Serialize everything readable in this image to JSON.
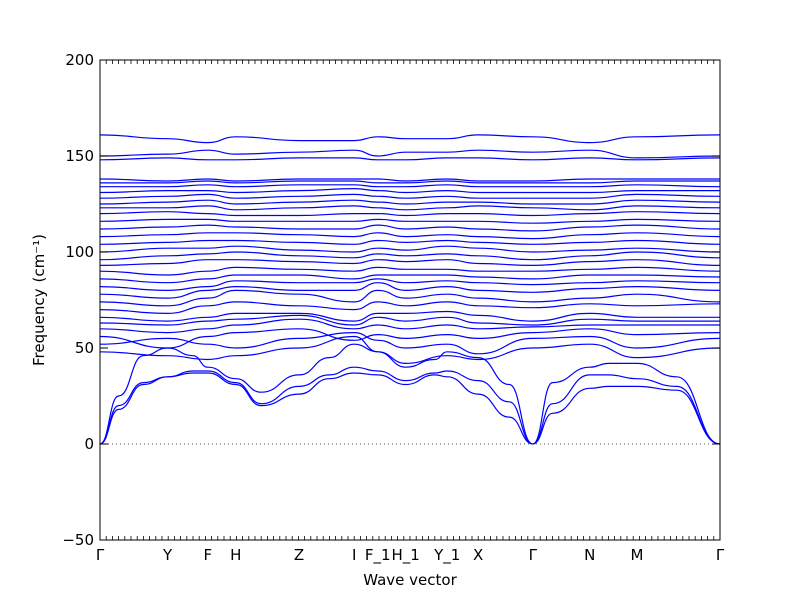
{
  "chart_data": {
    "type": "line",
    "title": "",
    "xlabel": "Wave vector",
    "ylabel": "Frequency",
    "ylabel_unit": "(cm⁻¹)",
    "ylim": [
      -50,
      200
    ],
    "yticks": [
      -50,
      0,
      50,
      100,
      150,
      200
    ],
    "x_tick_labels": [
      "Γ",
      "Y",
      "F",
      "H",
      "Z",
      "I",
      "F_1",
      "H_1",
      "Y_1",
      "X",
      "Γ",
      "N",
      "M",
      "Γ"
    ],
    "x_tick_positions": [
      0,
      0.109,
      0.174,
      0.219,
      0.321,
      0.41,
      0.448,
      0.493,
      0.56,
      0.61,
      0.698,
      0.79,
      0.866,
      1.0
    ],
    "zero_line": 0,
    "line_color": "#0000ff",
    "acoustic_branches": [
      {
        "x": [
          0,
          0.03,
          0.07,
          0.109,
          0.15,
          0.174,
          0.219,
          0.26,
          0.321,
          0.37,
          0.41,
          0.448,
          0.493,
          0.54,
          0.56,
          0.61,
          0.66,
          0.698,
          0.73,
          0.79,
          0.82,
          0.866,
          0.93,
          1.0
        ],
        "y": [
          0,
          18,
          31,
          35,
          37,
          37,
          31,
          20,
          26,
          34,
          37,
          36,
          31,
          36,
          35,
          26,
          14,
          0,
          16,
          29,
          30,
          30,
          28,
          0
        ]
      },
      {
        "x": [
          0,
          0.03,
          0.07,
          0.109,
          0.15,
          0.174,
          0.219,
          0.26,
          0.321,
          0.37,
          0.41,
          0.448,
          0.493,
          0.54,
          0.56,
          0.61,
          0.66,
          0.698,
          0.73,
          0.79,
          0.82,
          0.866,
          0.93,
          1.0
        ],
        "y": [
          0,
          20,
          32,
          35,
          38,
          38,
          32,
          21,
          30,
          36,
          40,
          38,
          33,
          37,
          38,
          33,
          22,
          0,
          21,
          36,
          36,
          34,
          30,
          0
        ]
      },
      {
        "x": [
          0,
          0.03,
          0.07,
          0.109,
          0.15,
          0.174,
          0.219,
          0.26,
          0.321,
          0.37,
          0.41,
          0.448,
          0.493,
          0.54,
          0.56,
          0.61,
          0.66,
          0.698,
          0.73,
          0.79,
          0.82,
          0.866,
          0.93,
          1.0
        ],
        "y": [
          0,
          25,
          46,
          50,
          46,
          40,
          34,
          27,
          36,
          45,
          52,
          48,
          40,
          44,
          48,
          45,
          31,
          0,
          32,
          40,
          42,
          42,
          35,
          0
        ]
      }
    ],
    "optical_branches": [
      {
        "x": [
          0,
          0.109,
          0.174,
          0.219,
          0.321,
          0.41,
          0.448,
          0.493,
          0.56,
          0.61,
          0.698,
          0.79,
          0.866,
          1.0
        ],
        "y": [
          48,
          46,
          44,
          46,
          50,
          56,
          48,
          42,
          46,
          44,
          50,
          52,
          45,
          50
        ]
      },
      {
        "x": [
          0,
          0.109,
          0.174,
          0.219,
          0.321,
          0.41,
          0.448,
          0.493,
          0.56,
          0.61,
          0.698,
          0.79,
          0.866,
          1.0
        ],
        "y": [
          52,
          55,
          52,
          50,
          55,
          58,
          54,
          50,
          52,
          47,
          55,
          56,
          50,
          55
        ]
      },
      {
        "x": [
          0,
          0.109,
          0.174,
          0.219,
          0.321,
          0.41,
          0.448,
          0.493,
          0.56,
          0.61,
          0.698,
          0.79,
          0.866,
          1.0
        ],
        "y": [
          56,
          50,
          56,
          58,
          60,
          54,
          57,
          55,
          57,
          55,
          58,
          60,
          57,
          58
        ]
      },
      {
        "x": [
          0,
          0.109,
          0.174,
          0.219,
          0.321,
          0.41,
          0.448,
          0.493,
          0.56,
          0.61,
          0.698,
          0.79,
          0.866,
          1.0
        ],
        "y": [
          60,
          58,
          60,
          62,
          65,
          60,
          62,
          60,
          62,
          60,
          61,
          62,
          62,
          62
        ]
      },
      {
        "x": [
          0,
          0.109,
          0.174,
          0.219,
          0.321,
          0.41,
          0.448,
          0.493,
          0.56,
          0.61,
          0.698,
          0.79,
          0.866,
          1.0
        ],
        "y": [
          63,
          62,
          64,
          65,
          67,
          62,
          66,
          64,
          66,
          63,
          62,
          65,
          64,
          64
        ]
      },
      {
        "x": [
          0,
          0.109,
          0.174,
          0.219,
          0.321,
          0.41,
          0.448,
          0.493,
          0.56,
          0.61,
          0.698,
          0.79,
          0.866,
          1.0
        ],
        "y": [
          66,
          64,
          66,
          68,
          68,
          64,
          68,
          68,
          69,
          67,
          64,
          68,
          66,
          66
        ]
      },
      {
        "x": [
          0,
          0.109,
          0.174,
          0.219,
          0.321,
          0.41,
          0.448,
          0.493,
          0.56,
          0.61,
          0.698,
          0.79,
          0.866,
          1.0
        ],
        "y": [
          70,
          68,
          72,
          74,
          72,
          70,
          74,
          72,
          74,
          72,
          71,
          73,
          72,
          73
        ]
      },
      {
        "x": [
          0,
          0.109,
          0.174,
          0.219,
          0.321,
          0.41,
          0.448,
          0.493,
          0.56,
          0.61,
          0.698,
          0.79,
          0.866,
          1.0
        ],
        "y": [
          74,
          72,
          76,
          80,
          78,
          74,
          80,
          76,
          78,
          76,
          74,
          76,
          78,
          74
        ]
      },
      {
        "x": [
          0,
          0.109,
          0.174,
          0.219,
          0.321,
          0.41,
          0.448,
          0.493,
          0.56,
          0.61,
          0.698,
          0.79,
          0.866,
          1.0
        ],
        "y": [
          78,
          76,
          80,
          82,
          80,
          80,
          84,
          80,
          82,
          80,
          79,
          81,
          82,
          80
        ]
      },
      {
        "x": [
          0,
          0.109,
          0.174,
          0.219,
          0.321,
          0.41,
          0.448,
          0.493,
          0.56,
          0.61,
          0.698,
          0.79,
          0.866,
          1.0
        ],
        "y": [
          82,
          80,
          82,
          85,
          84,
          84,
          86,
          84,
          85,
          84,
          83,
          84,
          85,
          84
        ]
      },
      {
        "x": [
          0,
          0.109,
          0.174,
          0.219,
          0.321,
          0.41,
          0.448,
          0.493,
          0.56,
          0.61,
          0.698,
          0.79,
          0.866,
          1.0
        ],
        "y": [
          86,
          84,
          86,
          88,
          88,
          86,
          88,
          88,
          88,
          87,
          86,
          88,
          88,
          87
        ]
      },
      {
        "x": [
          0,
          0.109,
          0.174,
          0.219,
          0.321,
          0.41,
          0.448,
          0.493,
          0.56,
          0.61,
          0.698,
          0.79,
          0.866,
          1.0
        ],
        "y": [
          90,
          88,
          90,
          92,
          91,
          90,
          92,
          91,
          91,
          90,
          90,
          91,
          92,
          90
        ]
      },
      {
        "x": [
          0,
          0.109,
          0.174,
          0.219,
          0.321,
          0.41,
          0.448,
          0.493,
          0.56,
          0.61,
          0.698,
          0.79,
          0.866,
          1.0
        ],
        "y": [
          93,
          94,
          96,
          96,
          95,
          94,
          96,
          95,
          96,
          94,
          93,
          95,
          96,
          93
        ]
      },
      {
        "x": [
          0,
          0.109,
          0.174,
          0.219,
          0.321,
          0.41,
          0.448,
          0.493,
          0.56,
          0.61,
          0.698,
          0.79,
          0.866,
          1.0
        ],
        "y": [
          96,
          98,
          99,
          100,
          98,
          97,
          99,
          98,
          99,
          98,
          96,
          98,
          100,
          97
        ]
      },
      {
        "x": [
          0,
          0.109,
          0.174,
          0.219,
          0.321,
          0.41,
          0.448,
          0.493,
          0.56,
          0.61,
          0.698,
          0.79,
          0.866,
          1.0
        ],
        "y": [
          100,
          102,
          102,
          103,
          101,
          100,
          102,
          101,
          103,
          102,
          100,
          101,
          102,
          100
        ]
      },
      {
        "x": [
          0,
          0.109,
          0.174,
          0.219,
          0.321,
          0.41,
          0.448,
          0.493,
          0.56,
          0.61,
          0.698,
          0.79,
          0.866,
          1.0
        ],
        "y": [
          104,
          105,
          106,
          106,
          105,
          104,
          106,
          105,
          106,
          105,
          104,
          105,
          106,
          104
        ]
      },
      {
        "x": [
          0,
          0.109,
          0.174,
          0.219,
          0.321,
          0.41,
          0.448,
          0.493,
          0.56,
          0.61,
          0.698,
          0.79,
          0.866,
          1.0
        ],
        "y": [
          108,
          109,
          110,
          110,
          109,
          108,
          110,
          108,
          109,
          108,
          107,
          109,
          110,
          108
        ]
      },
      {
        "x": [
          0,
          0.109,
          0.174,
          0.219,
          0.321,
          0.41,
          0.448,
          0.493,
          0.56,
          0.61,
          0.698,
          0.79,
          0.866,
          1.0
        ],
        "y": [
          112,
          113,
          114,
          113,
          112,
          112,
          114,
          112,
          113,
          112,
          111,
          113,
          114,
          112
        ]
      },
      {
        "x": [
          0,
          0.109,
          0.174,
          0.219,
          0.321,
          0.41,
          0.448,
          0.493,
          0.56,
          0.61,
          0.698,
          0.79,
          0.866,
          1.0
        ],
        "y": [
          116,
          117,
          117,
          116,
          116,
          116,
          117,
          116,
          116,
          116,
          115,
          116,
          117,
          116
        ]
      },
      {
        "x": [
          0,
          0.109,
          0.174,
          0.219,
          0.321,
          0.41,
          0.448,
          0.493,
          0.56,
          0.61,
          0.698,
          0.79,
          0.866,
          1.0
        ],
        "y": [
          120,
          121,
          120,
          119,
          119,
          120,
          120,
          119,
          120,
          120,
          119,
          120,
          121,
          120
        ]
      },
      {
        "x": [
          0,
          0.109,
          0.174,
          0.219,
          0.321,
          0.41,
          0.448,
          0.493,
          0.56,
          0.61,
          0.698,
          0.79,
          0.866,
          1.0
        ],
        "y": [
          123,
          123,
          124,
          122,
          123,
          124,
          123,
          122,
          123,
          124,
          123,
          122,
          124,
          123
        ]
      },
      {
        "x": [
          0,
          0.109,
          0.174,
          0.219,
          0.321,
          0.41,
          0.448,
          0.493,
          0.56,
          0.61,
          0.698,
          0.79,
          0.866,
          1.0
        ],
        "y": [
          125,
          126,
          127,
          125,
          126,
          127,
          126,
          125,
          126,
          126,
          125,
          125,
          127,
          126
        ]
      },
      {
        "x": [
          0,
          0.109,
          0.174,
          0.219,
          0.321,
          0.41,
          0.448,
          0.493,
          0.56,
          0.61,
          0.698,
          0.79,
          0.866,
          1.0
        ],
        "y": [
          128,
          129,
          130,
          128,
          129,
          130,
          129,
          128,
          129,
          128,
          128,
          128,
          130,
          129
        ]
      },
      {
        "x": [
          0,
          0.109,
          0.174,
          0.219,
          0.321,
          0.41,
          0.448,
          0.493,
          0.56,
          0.61,
          0.698,
          0.79,
          0.866,
          1.0
        ],
        "y": [
          131,
          132,
          132,
          131,
          132,
          133,
          132,
          131,
          132,
          131,
          131,
          131,
          132,
          132
        ]
      },
      {
        "x": [
          0,
          0.109,
          0.174,
          0.219,
          0.321,
          0.41,
          0.448,
          0.493,
          0.56,
          0.61,
          0.698,
          0.79,
          0.866,
          1.0
        ],
        "y": [
          134,
          134,
          135,
          134,
          135,
          135,
          134,
          134,
          135,
          134,
          134,
          134,
          135,
          134
        ]
      },
      {
        "x": [
          0,
          0.109,
          0.174,
          0.219,
          0.321,
          0.41,
          0.448,
          0.493,
          0.56,
          0.61,
          0.698,
          0.79,
          0.866,
          1.0
        ],
        "y": [
          136,
          136,
          137,
          136,
          137,
          137,
          136,
          136,
          137,
          136,
          136,
          136,
          137,
          137
        ]
      },
      {
        "x": [
          0,
          0.109,
          0.174,
          0.219,
          0.321,
          0.41,
          0.448,
          0.493,
          0.56,
          0.61,
          0.698,
          0.79,
          0.866,
          1.0
        ],
        "y": [
          138,
          137,
          138,
          137,
          138,
          138,
          138,
          137,
          138,
          137,
          137,
          138,
          138,
          138
        ]
      },
      {
        "x": [
          0,
          0.109,
          0.174,
          0.219,
          0.321,
          0.41,
          0.448,
          0.493,
          0.56,
          0.61,
          0.698,
          0.79,
          0.866,
          1.0
        ],
        "y": [
          148,
          149,
          148,
          148,
          149,
          149,
          148,
          148,
          149,
          149,
          148,
          149,
          148,
          149
        ]
      },
      {
        "x": [
          0,
          0.109,
          0.174,
          0.219,
          0.321,
          0.41,
          0.448,
          0.493,
          0.56,
          0.61,
          0.698,
          0.79,
          0.866,
          1.0
        ],
        "y": [
          150,
          151,
          153,
          151,
          152,
          153,
          150,
          152,
          152,
          153,
          152,
          153,
          149,
          150
        ]
      },
      {
        "x": [
          0,
          0.109,
          0.174,
          0.219,
          0.321,
          0.41,
          0.448,
          0.493,
          0.56,
          0.61,
          0.698,
          0.79,
          0.866,
          1.0
        ],
        "y": [
          161,
          159,
          157,
          160,
          158,
          158,
          160,
          159,
          159,
          161,
          160,
          157,
          160,
          161
        ]
      }
    ]
  }
}
